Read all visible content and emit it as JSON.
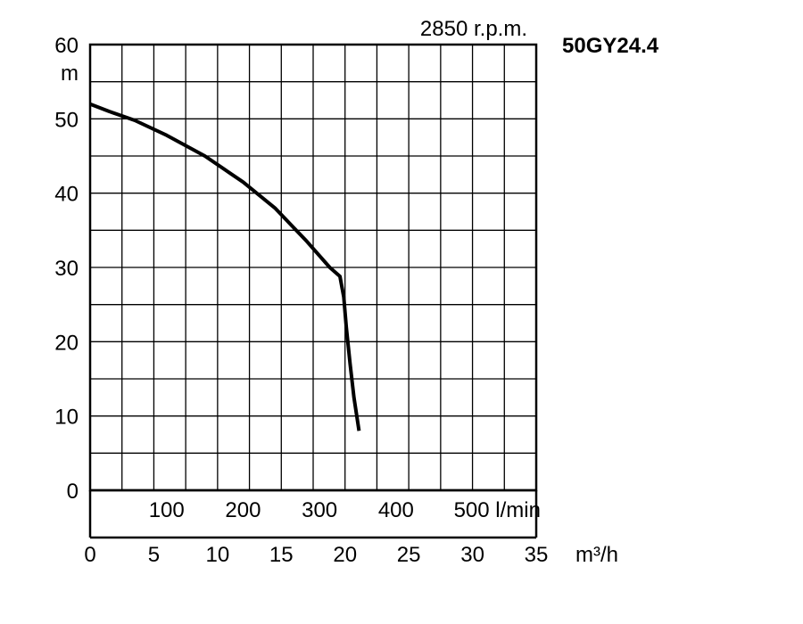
{
  "chart_data": {
    "type": "line",
    "title": "50GY24.4",
    "subtitle": "2850 r.p.m.",
    "ylabel": "m",
    "xlabel": "m³/h",
    "secondary_xlabel": "l/min",
    "ylim": [
      0,
      60
    ],
    "xlim": [
      0,
      35
    ],
    "grid": true,
    "y_ticks": [
      "0",
      "10",
      "20",
      "30",
      "40",
      "50",
      "60"
    ],
    "x_ticks": [
      "0",
      "5",
      "10",
      "15",
      "20",
      "25",
      "30",
      "35"
    ],
    "secondary_x_ticks": [
      "100",
      "200",
      "300",
      "400",
      "500 l/min"
    ],
    "series": [
      {
        "x": [
          0,
          1.5,
          3.5,
          6,
          9,
          12,
          14.5,
          17,
          18.8,
          19.6,
          19.9,
          20.1,
          20.4,
          20.7,
          21.1
        ],
        "y": [
          52,
          51,
          49.8,
          47.8,
          45,
          41.5,
          38,
          33.5,
          30,
          28.8,
          26,
          22,
          17,
          12.5,
          8
        ]
      }
    ]
  }
}
